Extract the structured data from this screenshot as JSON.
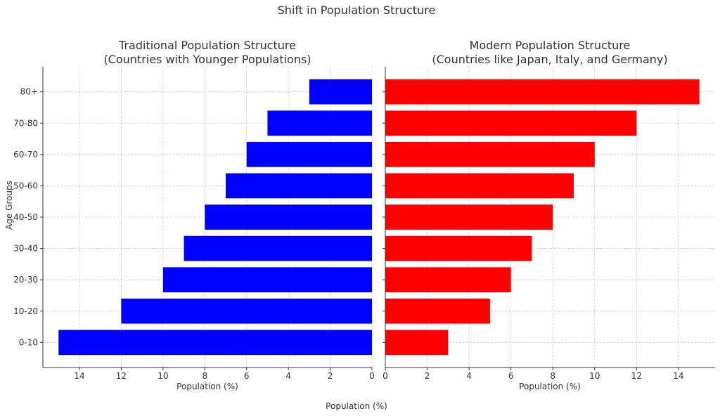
{
  "figure": {
    "suptitle": "Shift in Population Structure",
    "shared_xlabel": "Population (%)"
  },
  "chart_data": [
    {
      "type": "bar",
      "orientation": "horizontal",
      "direction": "reversed",
      "title_line1": "Traditional Population Structure",
      "title_line2": "(Countries with Younger Populations)",
      "xlabel": "Population (%)",
      "ylabel": "Age Groups",
      "categories": [
        "0-10",
        "10-20",
        "20-30",
        "30-40",
        "40-50",
        "50-60",
        "60-70",
        "70-80",
        "80+"
      ],
      "values": [
        15,
        12,
        10,
        9,
        8,
        7,
        6,
        5,
        3
      ],
      "xlim": [
        0,
        15.75
      ],
      "xticks": [
        14,
        12,
        10,
        8,
        6,
        4,
        2,
        0
      ],
      "color": "#0000ff",
      "grid": true
    },
    {
      "type": "bar",
      "orientation": "horizontal",
      "direction": "normal",
      "title_line1": "Modern Population Structure",
      "title_line2": "(Countries like Japan, Italy, and Germany)",
      "xlabel": "Population (%)",
      "categories": [
        "0-10",
        "10-20",
        "20-30",
        "30-40",
        "40-50",
        "50-60",
        "60-70",
        "70-80",
        "80+"
      ],
      "values": [
        3,
        5,
        6,
        7,
        8,
        9,
        10,
        12,
        15
      ],
      "xlim": [
        0,
        15.75
      ],
      "xticks": [
        0,
        2,
        4,
        6,
        8,
        10,
        12,
        14
      ],
      "color": "#ff0000",
      "grid": true
    }
  ]
}
